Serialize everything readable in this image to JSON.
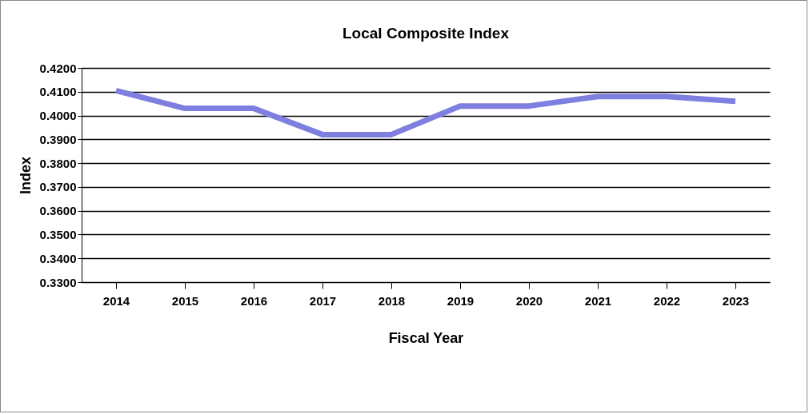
{
  "chart_data": {
    "type": "line",
    "title": "Local Composite Index",
    "xlabel": "Fiscal Year",
    "ylabel": "Index",
    "categories": [
      "2014",
      "2015",
      "2016",
      "2017",
      "2018",
      "2019",
      "2020",
      "2021",
      "2022",
      "2023"
    ],
    "series": [
      {
        "color": "#7f7fdf",
        "values": [
          0.4105,
          0.403,
          0.403,
          0.392,
          0.392,
          0.404,
          0.404,
          0.408,
          0.408,
          0.406
        ]
      }
    ],
    "ylim": [
      0.33,
      0.42
    ],
    "yticks": [
      {
        "value": 0.33,
        "label": "0.3300"
      },
      {
        "value": 0.34,
        "label": "0.3400"
      },
      {
        "value": 0.35,
        "label": "0.3500"
      },
      {
        "value": 0.36,
        "label": "0.3600"
      },
      {
        "value": 0.37,
        "label": "0.3700"
      },
      {
        "value": 0.38,
        "label": "0.3800"
      },
      {
        "value": 0.39,
        "label": "0.3900"
      },
      {
        "value": 0.4,
        "label": "0.4000"
      },
      {
        "value": 0.41,
        "label": "0.4100"
      },
      {
        "value": 0.42,
        "label": "0.4200"
      }
    ],
    "grid": "y",
    "marker": "none",
    "line_style": "solid"
  }
}
